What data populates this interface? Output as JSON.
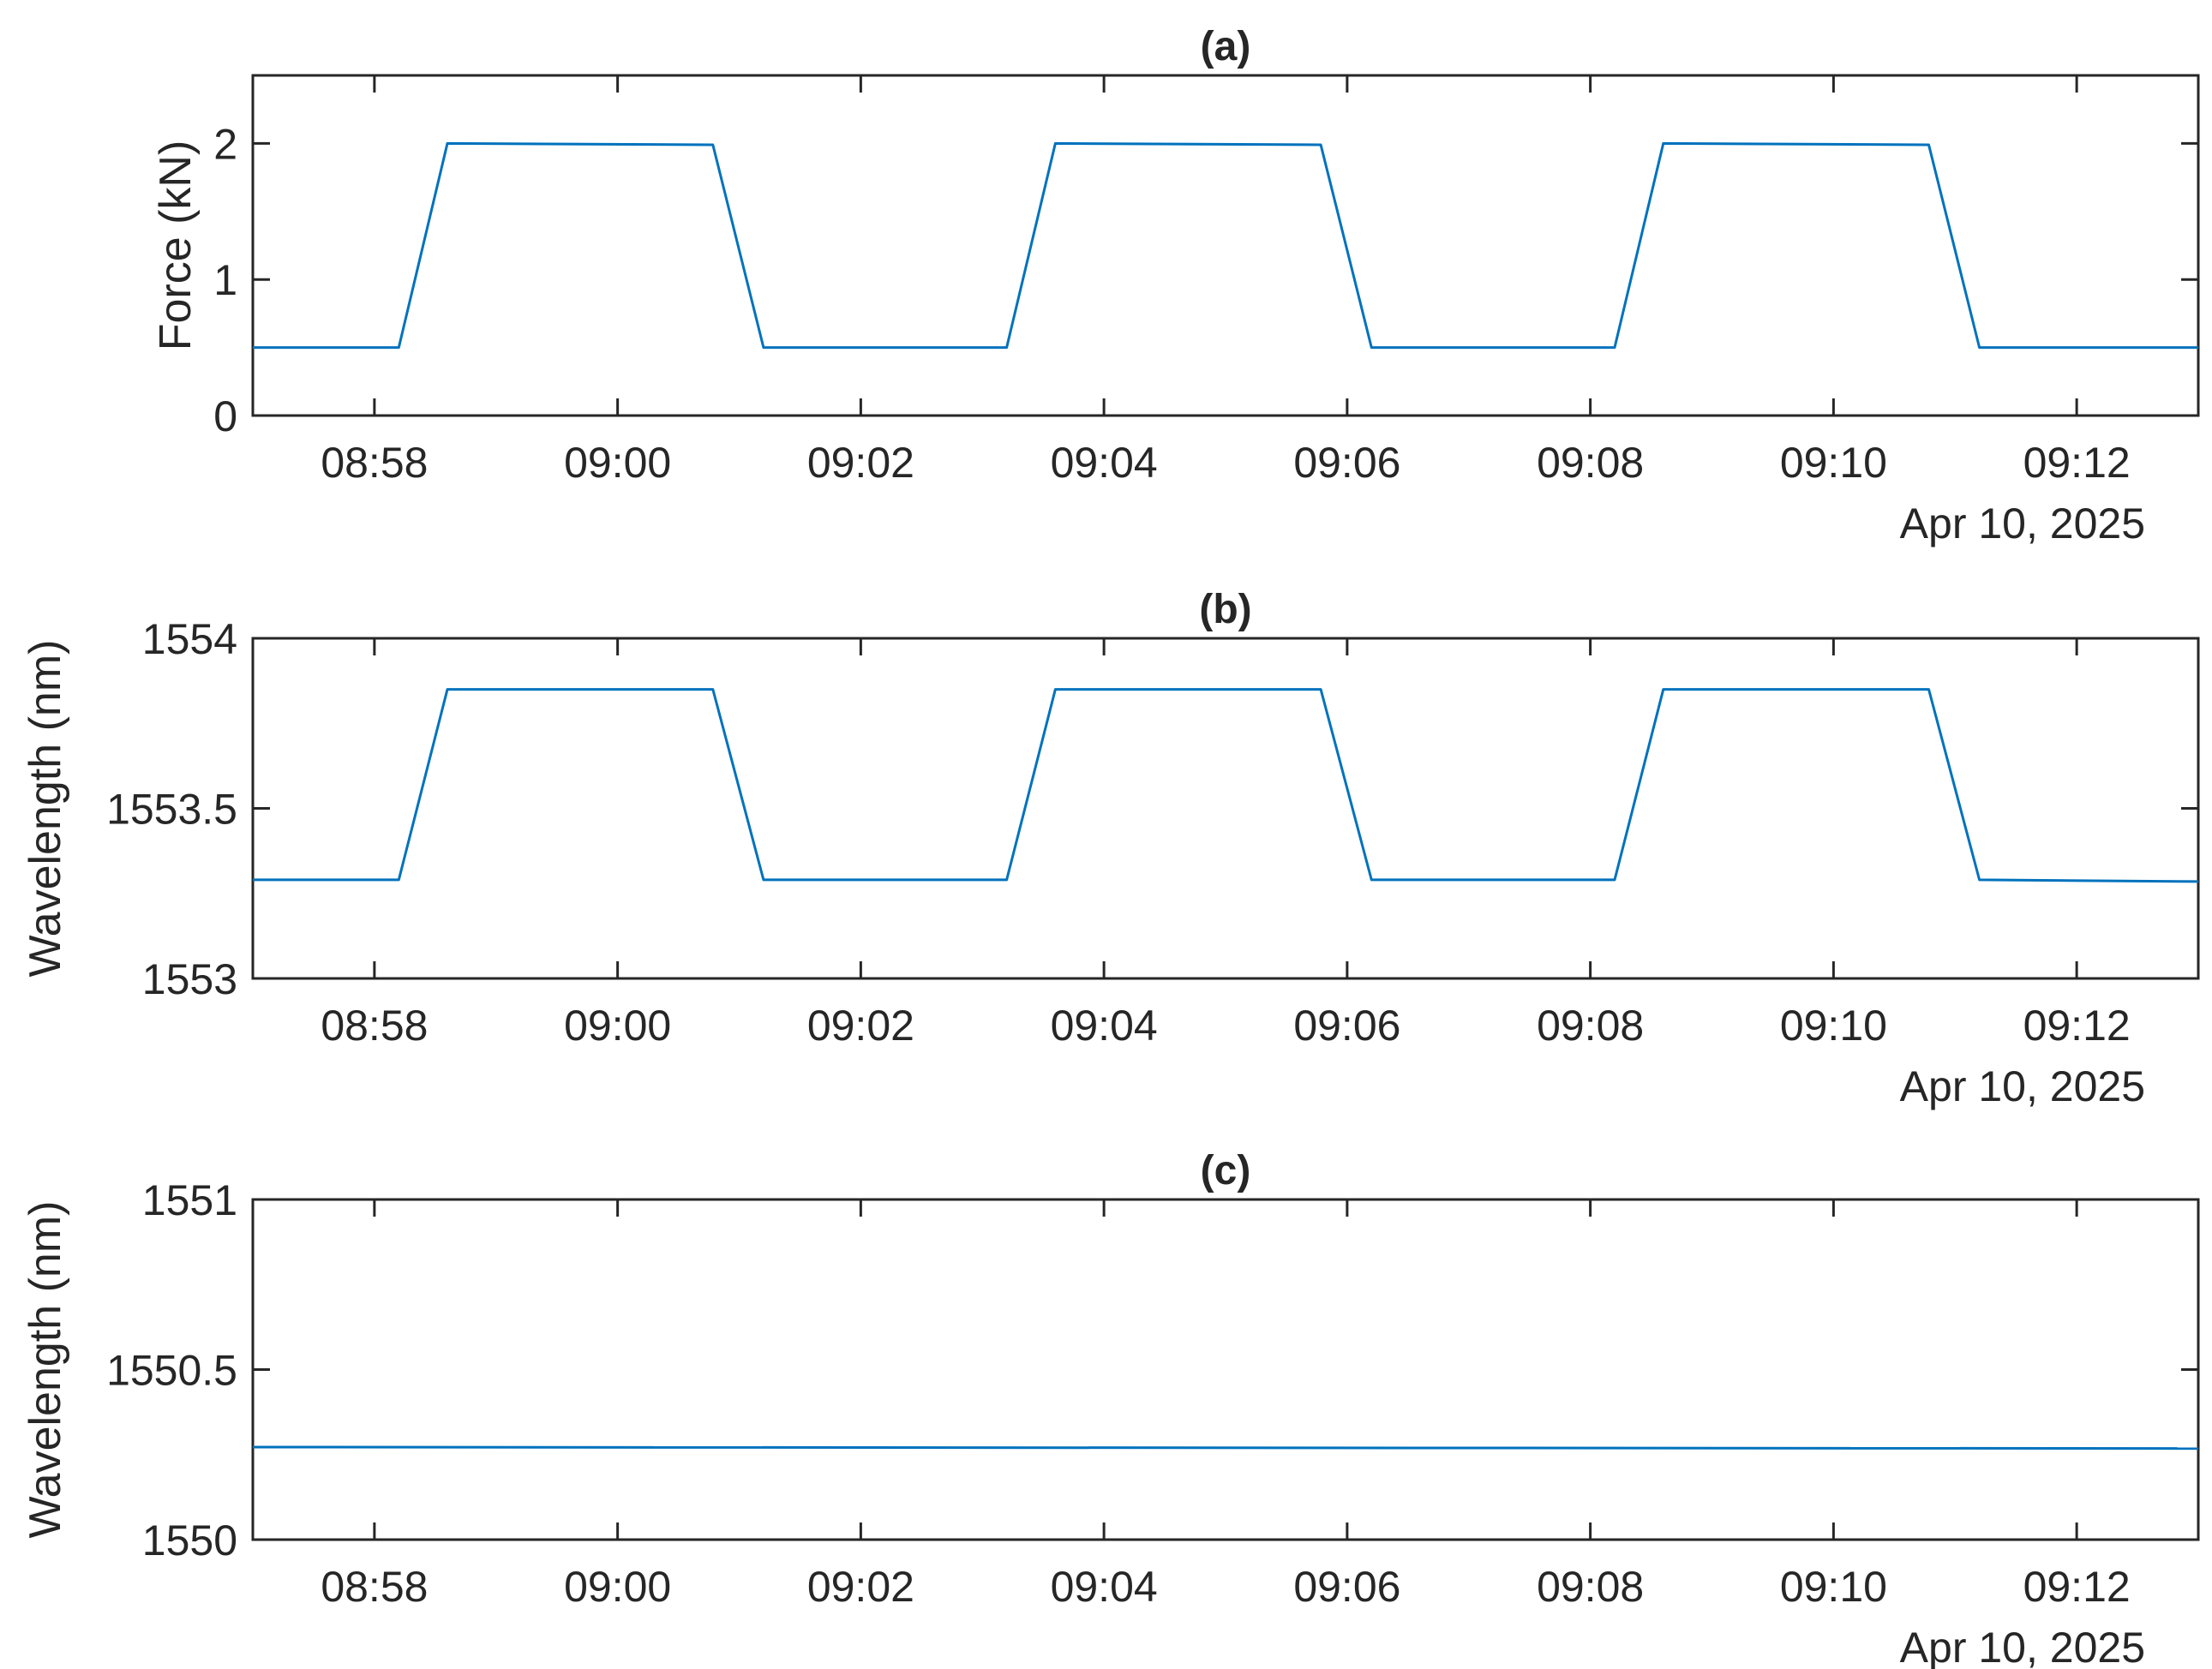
{
  "chart_data": [
    {
      "type": "line",
      "title": "(a)",
      "ylabel": "Force (kN)",
      "xlabel": "",
      "date_label": "Apr 10, 2025",
      "xlim": [
        "08:57:00",
        "09:13:00"
      ],
      "ylim": [
        0,
        2.5
      ],
      "xticks": [
        "08:58",
        "09:00",
        "09:02",
        "09:04",
        "09:06",
        "09:08",
        "09:10",
        "09:12"
      ],
      "yticks": [
        "0",
        "1",
        "2"
      ],
      "ytick_values": [
        0,
        1,
        2
      ],
      "grid": false,
      "series": [
        {
          "color": "#0072BD",
          "x": [
            "08:57:00",
            "08:58:12",
            "08:58:36",
            "09:00:47",
            "09:01:12",
            "09:03:12",
            "09:03:36",
            "09:05:47",
            "09:06:12",
            "09:08:12",
            "09:08:36",
            "09:10:47",
            "09:11:12",
            "09:13:00"
          ],
          "y": [
            0.5,
            0.5,
            2.0,
            1.99,
            0.5,
            0.5,
            2.0,
            1.99,
            0.5,
            0.5,
            2.0,
            1.99,
            0.5,
            0.5
          ]
        }
      ]
    },
    {
      "type": "line",
      "title": "(b)",
      "ylabel": "Wavelength (nm)",
      "xlabel": "",
      "date_label": "Apr 10, 2025",
      "xlim": [
        "08:57:00",
        "09:13:00"
      ],
      "ylim": [
        1553,
        1554
      ],
      "xticks": [
        "08:58",
        "09:00",
        "09:02",
        "09:04",
        "09:06",
        "09:08",
        "09:10",
        "09:12"
      ],
      "yticks": [
        "1553",
        "1553.5",
        "1554"
      ],
      "ytick_values": [
        1553,
        1553.5,
        1554
      ],
      "grid": false,
      "series": [
        {
          "color": "#0072BD",
          "x": [
            "08:57:00",
            "08:58:12",
            "08:58:36",
            "09:00:47",
            "09:01:12",
            "09:03:12",
            "09:03:36",
            "09:05:47",
            "09:06:12",
            "09:08:12",
            "09:08:36",
            "09:10:47",
            "09:11:12",
            "09:13:00"
          ],
          "y": [
            1553.29,
            1553.29,
            1553.85,
            1553.85,
            1553.29,
            1553.29,
            1553.85,
            1553.85,
            1553.29,
            1553.29,
            1553.85,
            1553.85,
            1553.29,
            1553.285
          ]
        }
      ]
    },
    {
      "type": "line",
      "title": "(c)",
      "ylabel": "Wavelength (nm)",
      "xlabel": "",
      "date_label": "Apr 10, 2025",
      "xlim": [
        "08:57:00",
        "09:13:00"
      ],
      "ylim": [
        1550,
        1551
      ],
      "xticks": [
        "08:58",
        "09:00",
        "09:02",
        "09:04",
        "09:06",
        "09:08",
        "09:10",
        "09:12"
      ],
      "yticks": [
        "1550",
        "1550.5",
        "1551"
      ],
      "ytick_values": [
        1550,
        1550.5,
        1551
      ],
      "grid": false,
      "series": [
        {
          "color": "#0072BD",
          "x": [
            "08:57:00",
            "09:13:00"
          ],
          "y": [
            1550.272,
            1550.268
          ]
        }
      ]
    }
  ]
}
